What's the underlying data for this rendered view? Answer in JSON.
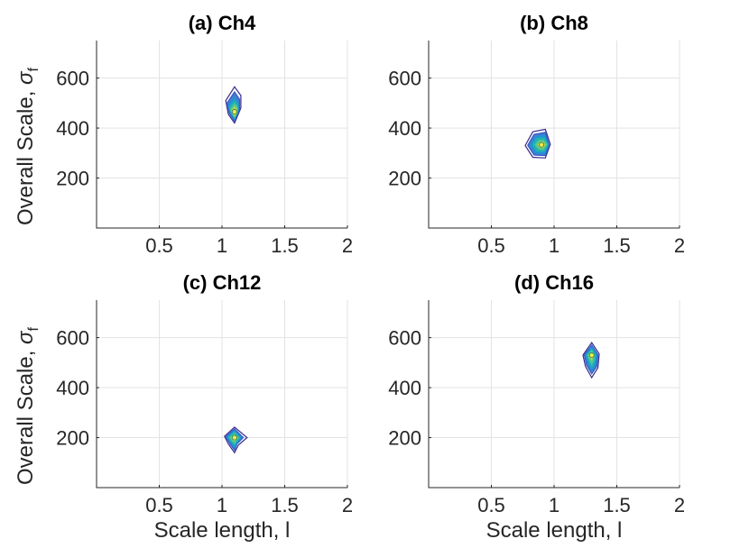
{
  "figure": {
    "ylabel_main": "Overall Scale, ",
    "ylabel_symbol": "σ",
    "ylabel_subscript": "f",
    "xlabel": "Scale length, l"
  },
  "chart_data": [
    {
      "type": "contour",
      "title": "(a) Ch4",
      "xlim": [
        0,
        2
      ],
      "ylim": [
        0,
        750
      ],
      "xticks": [
        0.5,
        1,
        1.5,
        2
      ],
      "xtick_labels": [
        "0.5",
        "1",
        "1.5",
        "2"
      ],
      "yticks": [
        200,
        400,
        600
      ],
      "ytick_labels": [
        "200",
        "400",
        "600"
      ],
      "peak": {
        "x": 1.1,
        "y": 465
      },
      "contours": [
        [
          [
            1.03,
            510
          ],
          [
            1.1,
            565
          ],
          [
            1.15,
            530
          ],
          [
            1.15,
            480
          ],
          [
            1.1,
            420
          ],
          [
            1.05,
            455
          ]
        ],
        [
          [
            1.04,
            500
          ],
          [
            1.1,
            545
          ],
          [
            1.14,
            515
          ],
          [
            1.14,
            475
          ],
          [
            1.1,
            428
          ],
          [
            1.06,
            458
          ]
        ],
        [
          [
            1.05,
            490
          ],
          [
            1.1,
            525
          ],
          [
            1.13,
            500
          ],
          [
            1.13,
            470
          ],
          [
            1.1,
            435
          ],
          [
            1.07,
            460
          ]
        ],
        [
          [
            1.06,
            482
          ],
          [
            1.1,
            510
          ],
          [
            1.125,
            492
          ],
          [
            1.125,
            466
          ],
          [
            1.1,
            440
          ],
          [
            1.075,
            462
          ]
        ],
        [
          [
            1.07,
            476
          ],
          [
            1.1,
            497
          ],
          [
            1.12,
            484
          ],
          [
            1.12,
            462
          ],
          [
            1.1,
            445
          ],
          [
            1.08,
            462
          ]
        ],
        [
          [
            1.08,
            470
          ],
          [
            1.1,
            485
          ],
          [
            1.115,
            477
          ],
          [
            1.115,
            458
          ],
          [
            1.1,
            450
          ],
          [
            1.085,
            462
          ]
        ]
      ]
    },
    {
      "type": "contour",
      "title": "(b) Ch8",
      "xlim": [
        0,
        2
      ],
      "ylim": [
        0,
        750
      ],
      "xticks": [
        0.5,
        1,
        1.5,
        2
      ],
      "xtick_labels": [
        "0.5",
        "1",
        "1.5",
        "2"
      ],
      "yticks": [
        200,
        400,
        600
      ],
      "ytick_labels": [
        "200",
        "400",
        "600"
      ],
      "peak": {
        "x": 0.9,
        "y": 333
      },
      "contours": [
        [
          [
            0.77,
            330
          ],
          [
            0.83,
            385
          ],
          [
            0.93,
            395
          ],
          [
            0.97,
            335
          ],
          [
            0.93,
            280
          ],
          [
            0.83,
            283
          ]
        ],
        [
          [
            0.79,
            331
          ],
          [
            0.84,
            375
          ],
          [
            0.93,
            383
          ],
          [
            0.96,
            334
          ],
          [
            0.93,
            290
          ],
          [
            0.84,
            292
          ]
        ],
        [
          [
            0.81,
            332
          ],
          [
            0.85,
            366
          ],
          [
            0.925,
            372
          ],
          [
            0.955,
            334
          ],
          [
            0.925,
            298
          ],
          [
            0.85,
            300
          ]
        ],
        [
          [
            0.83,
            333
          ],
          [
            0.86,
            358
          ],
          [
            0.92,
            362
          ],
          [
            0.95,
            334
          ],
          [
            0.92,
            306
          ],
          [
            0.86,
            308
          ]
        ],
        [
          [
            0.85,
            333
          ],
          [
            0.875,
            350
          ],
          [
            0.915,
            352
          ],
          [
            0.94,
            334
          ],
          [
            0.915,
            314
          ],
          [
            0.875,
            316
          ]
        ],
        [
          [
            0.87,
            333
          ],
          [
            0.89,
            343
          ],
          [
            0.91,
            344
          ],
          [
            0.93,
            334
          ],
          [
            0.91,
            322
          ],
          [
            0.89,
            323
          ]
        ]
      ]
    },
    {
      "type": "contour",
      "title": "(c) Ch12",
      "xlim": [
        0,
        2
      ],
      "ylim": [
        0,
        750
      ],
      "xticks": [
        0.5,
        1,
        1.5,
        2
      ],
      "xtick_labels": [
        "0.5",
        "1",
        "1.5",
        "2"
      ],
      "yticks": [
        200,
        400,
        600
      ],
      "ytick_labels": [
        "200",
        "400",
        "600"
      ],
      "peak": {
        "x": 1.1,
        "y": 200
      },
      "contours": [
        [
          [
            1.02,
            205
          ],
          [
            1.1,
            242
          ],
          [
            1.2,
            200
          ],
          [
            1.13,
            170
          ],
          [
            1.1,
            140
          ],
          [
            1.05,
            175
          ]
        ],
        [
          [
            1.03,
            204
          ],
          [
            1.1,
            235
          ],
          [
            1.17,
            200
          ],
          [
            1.12,
            175
          ],
          [
            1.1,
            150
          ],
          [
            1.06,
            178
          ]
        ],
        [
          [
            1.04,
            203
          ],
          [
            1.1,
            228
          ],
          [
            1.15,
            200
          ],
          [
            1.12,
            180
          ],
          [
            1.1,
            160
          ],
          [
            1.07,
            181
          ]
        ],
        [
          [
            1.05,
            202
          ],
          [
            1.1,
            222
          ],
          [
            1.14,
            200
          ],
          [
            1.115,
            184
          ],
          [
            1.1,
            170
          ],
          [
            1.075,
            184
          ]
        ],
        [
          [
            1.065,
            201
          ],
          [
            1.1,
            215
          ],
          [
            1.13,
            200
          ],
          [
            1.11,
            188
          ],
          [
            1.1,
            179
          ],
          [
            1.08,
            188
          ]
        ],
        [
          [
            1.08,
            200
          ],
          [
            1.1,
            208
          ],
          [
            1.12,
            200
          ],
          [
            1.105,
            192
          ],
          [
            1.1,
            188
          ],
          [
            1.09,
            192
          ]
        ]
      ]
    },
    {
      "type": "contour",
      "title": "(d) Ch16",
      "xlim": [
        0,
        2
      ],
      "ylim": [
        0,
        750
      ],
      "xticks": [
        0.5,
        1,
        1.5,
        2
      ],
      "xtick_labels": [
        "0.5",
        "1",
        "1.5",
        "2"
      ],
      "yticks": [
        200,
        400,
        600
      ],
      "ytick_labels": [
        "200",
        "400",
        "600"
      ],
      "peak": {
        "x": 1.3,
        "y": 530
      },
      "contours": [
        [
          [
            1.23,
            530
          ],
          [
            1.3,
            580
          ],
          [
            1.36,
            535
          ],
          [
            1.35,
            480
          ],
          [
            1.3,
            440
          ],
          [
            1.25,
            485
          ]
        ],
        [
          [
            1.24,
            530
          ],
          [
            1.3,
            570
          ],
          [
            1.35,
            532
          ],
          [
            1.34,
            485
          ],
          [
            1.3,
            455
          ],
          [
            1.26,
            490
          ]
        ],
        [
          [
            1.25,
            530
          ],
          [
            1.3,
            562
          ],
          [
            1.34,
            530
          ],
          [
            1.33,
            492
          ],
          [
            1.3,
            468
          ],
          [
            1.27,
            495
          ]
        ],
        [
          [
            1.26,
            530
          ],
          [
            1.3,
            554
          ],
          [
            1.33,
            530
          ],
          [
            1.32,
            500
          ],
          [
            1.3,
            480
          ],
          [
            1.28,
            502
          ]
        ],
        [
          [
            1.27,
            530
          ],
          [
            1.3,
            546
          ],
          [
            1.32,
            530
          ],
          [
            1.315,
            510
          ],
          [
            1.3,
            495
          ],
          [
            1.285,
            510
          ]
        ],
        [
          [
            1.28,
            530
          ],
          [
            1.3,
            540
          ],
          [
            1.31,
            530
          ],
          [
            1.305,
            520
          ],
          [
            1.3,
            512
          ],
          [
            1.29,
            520
          ]
        ]
      ]
    }
  ]
}
